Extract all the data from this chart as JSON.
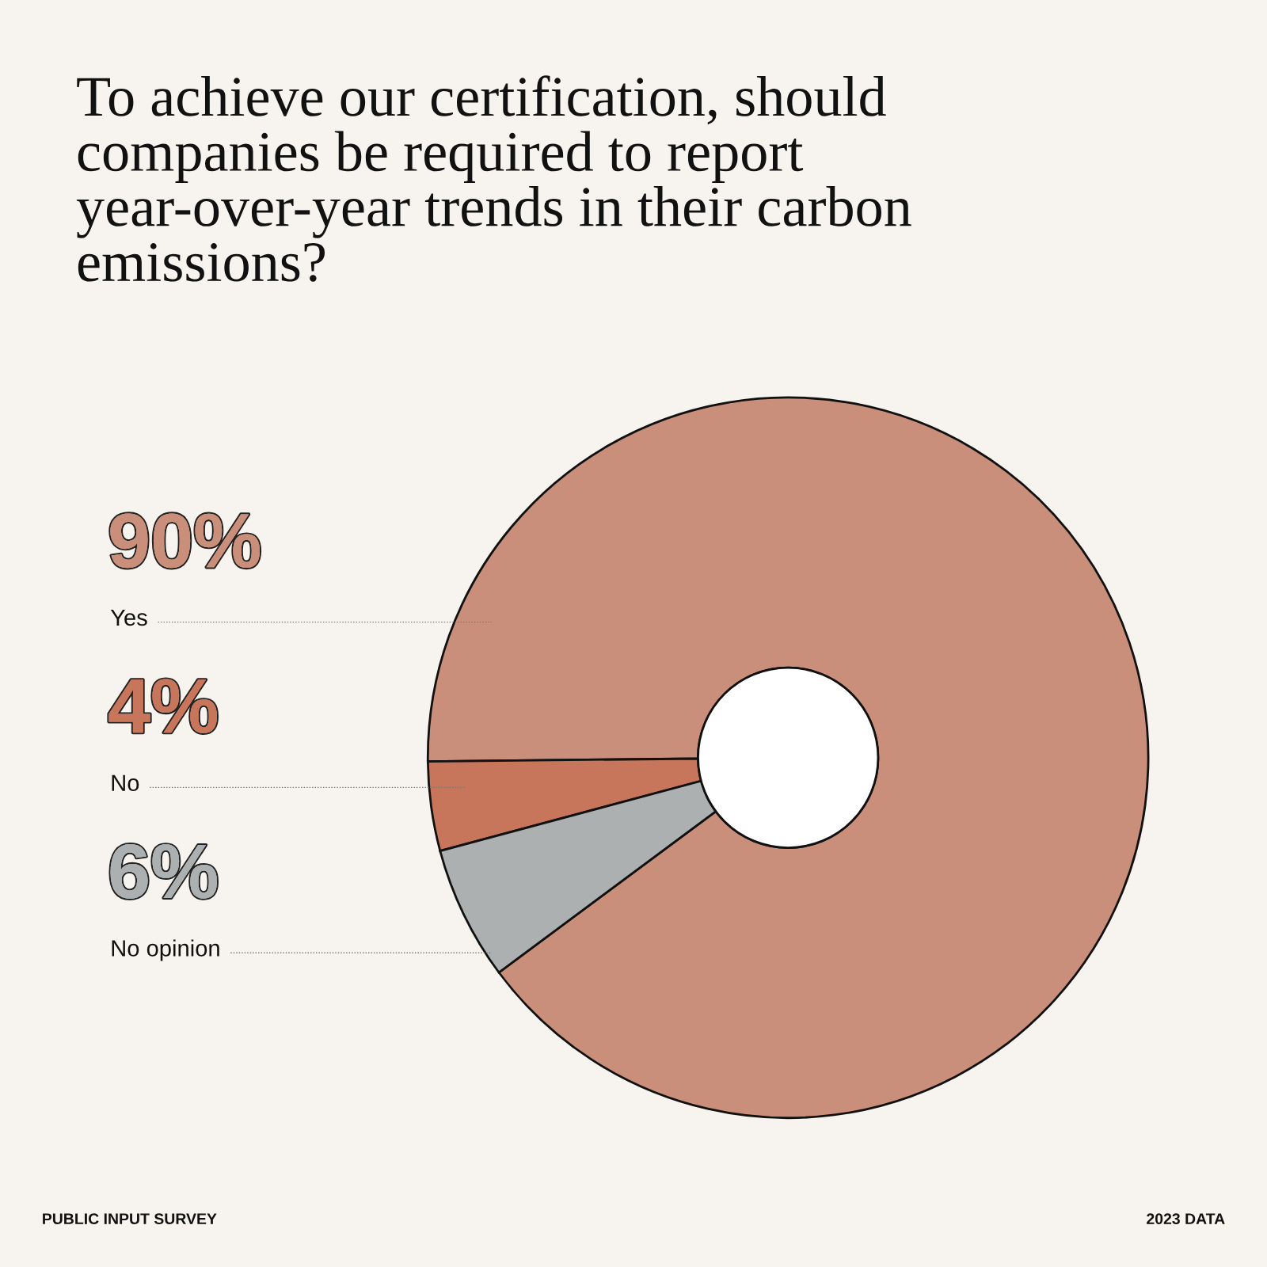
{
  "chart_data": {
    "type": "donut",
    "title": "To achieve our certification, should companies be required to report year-over-year trends in their carbon emissions?",
    "categories": [
      "Yes",
      "No",
      "No opinion"
    ],
    "values": [
      90,
      4,
      6
    ],
    "colors": [
      "#c98f7b",
      "#c7765b",
      "#acb0b0"
    ],
    "value_labels": [
      "90%",
      "4%",
      "6%"
    ],
    "annotations": [
      "PUBLIC INPUT SURVEY",
      "2023 DATA"
    ]
  }
}
